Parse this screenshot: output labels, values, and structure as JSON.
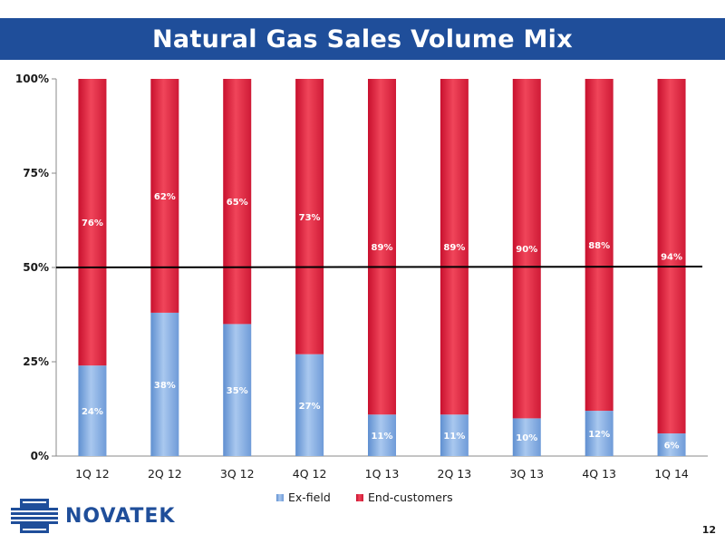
{
  "title": "Natural Gas Sales Volume Mix",
  "page_number": "12",
  "logo": {
    "name": "NOVATEK"
  },
  "colors": {
    "ex_field": "#8fb4e3",
    "end_customers": "#e8283f",
    "title_bar": "#1f4e9a"
  },
  "chart_data": {
    "type": "bar",
    "stacked": true,
    "categories": [
      "1Q 12",
      "2Q 12",
      "3Q 12",
      "4Q 12",
      "1Q 13",
      "2Q 13",
      "3Q 13",
      "4Q 13",
      "1Q 14"
    ],
    "series": [
      {
        "name": "Ex-field",
        "values": [
          24,
          38,
          35,
          27,
          11,
          11,
          10,
          12,
          6
        ],
        "labels": [
          "24%",
          "38%",
          "35%",
          "27%",
          "11%",
          "11%",
          "10%",
          "12%",
          "6%"
        ]
      },
      {
        "name": "End-customers",
        "values": [
          76,
          62,
          65,
          73,
          89,
          89,
          90,
          88,
          94
        ],
        "labels": [
          "76%",
          "62%",
          "65%",
          "73%",
          "89%",
          "89%",
          "90%",
          "88%",
          "94%"
        ]
      }
    ],
    "ylim": [
      0,
      100
    ],
    "yticks": [
      "0%",
      "25%",
      "50%",
      "75%",
      "100%"
    ],
    "reference_line": 50,
    "legend_position": "bottom",
    "grid": false
  }
}
